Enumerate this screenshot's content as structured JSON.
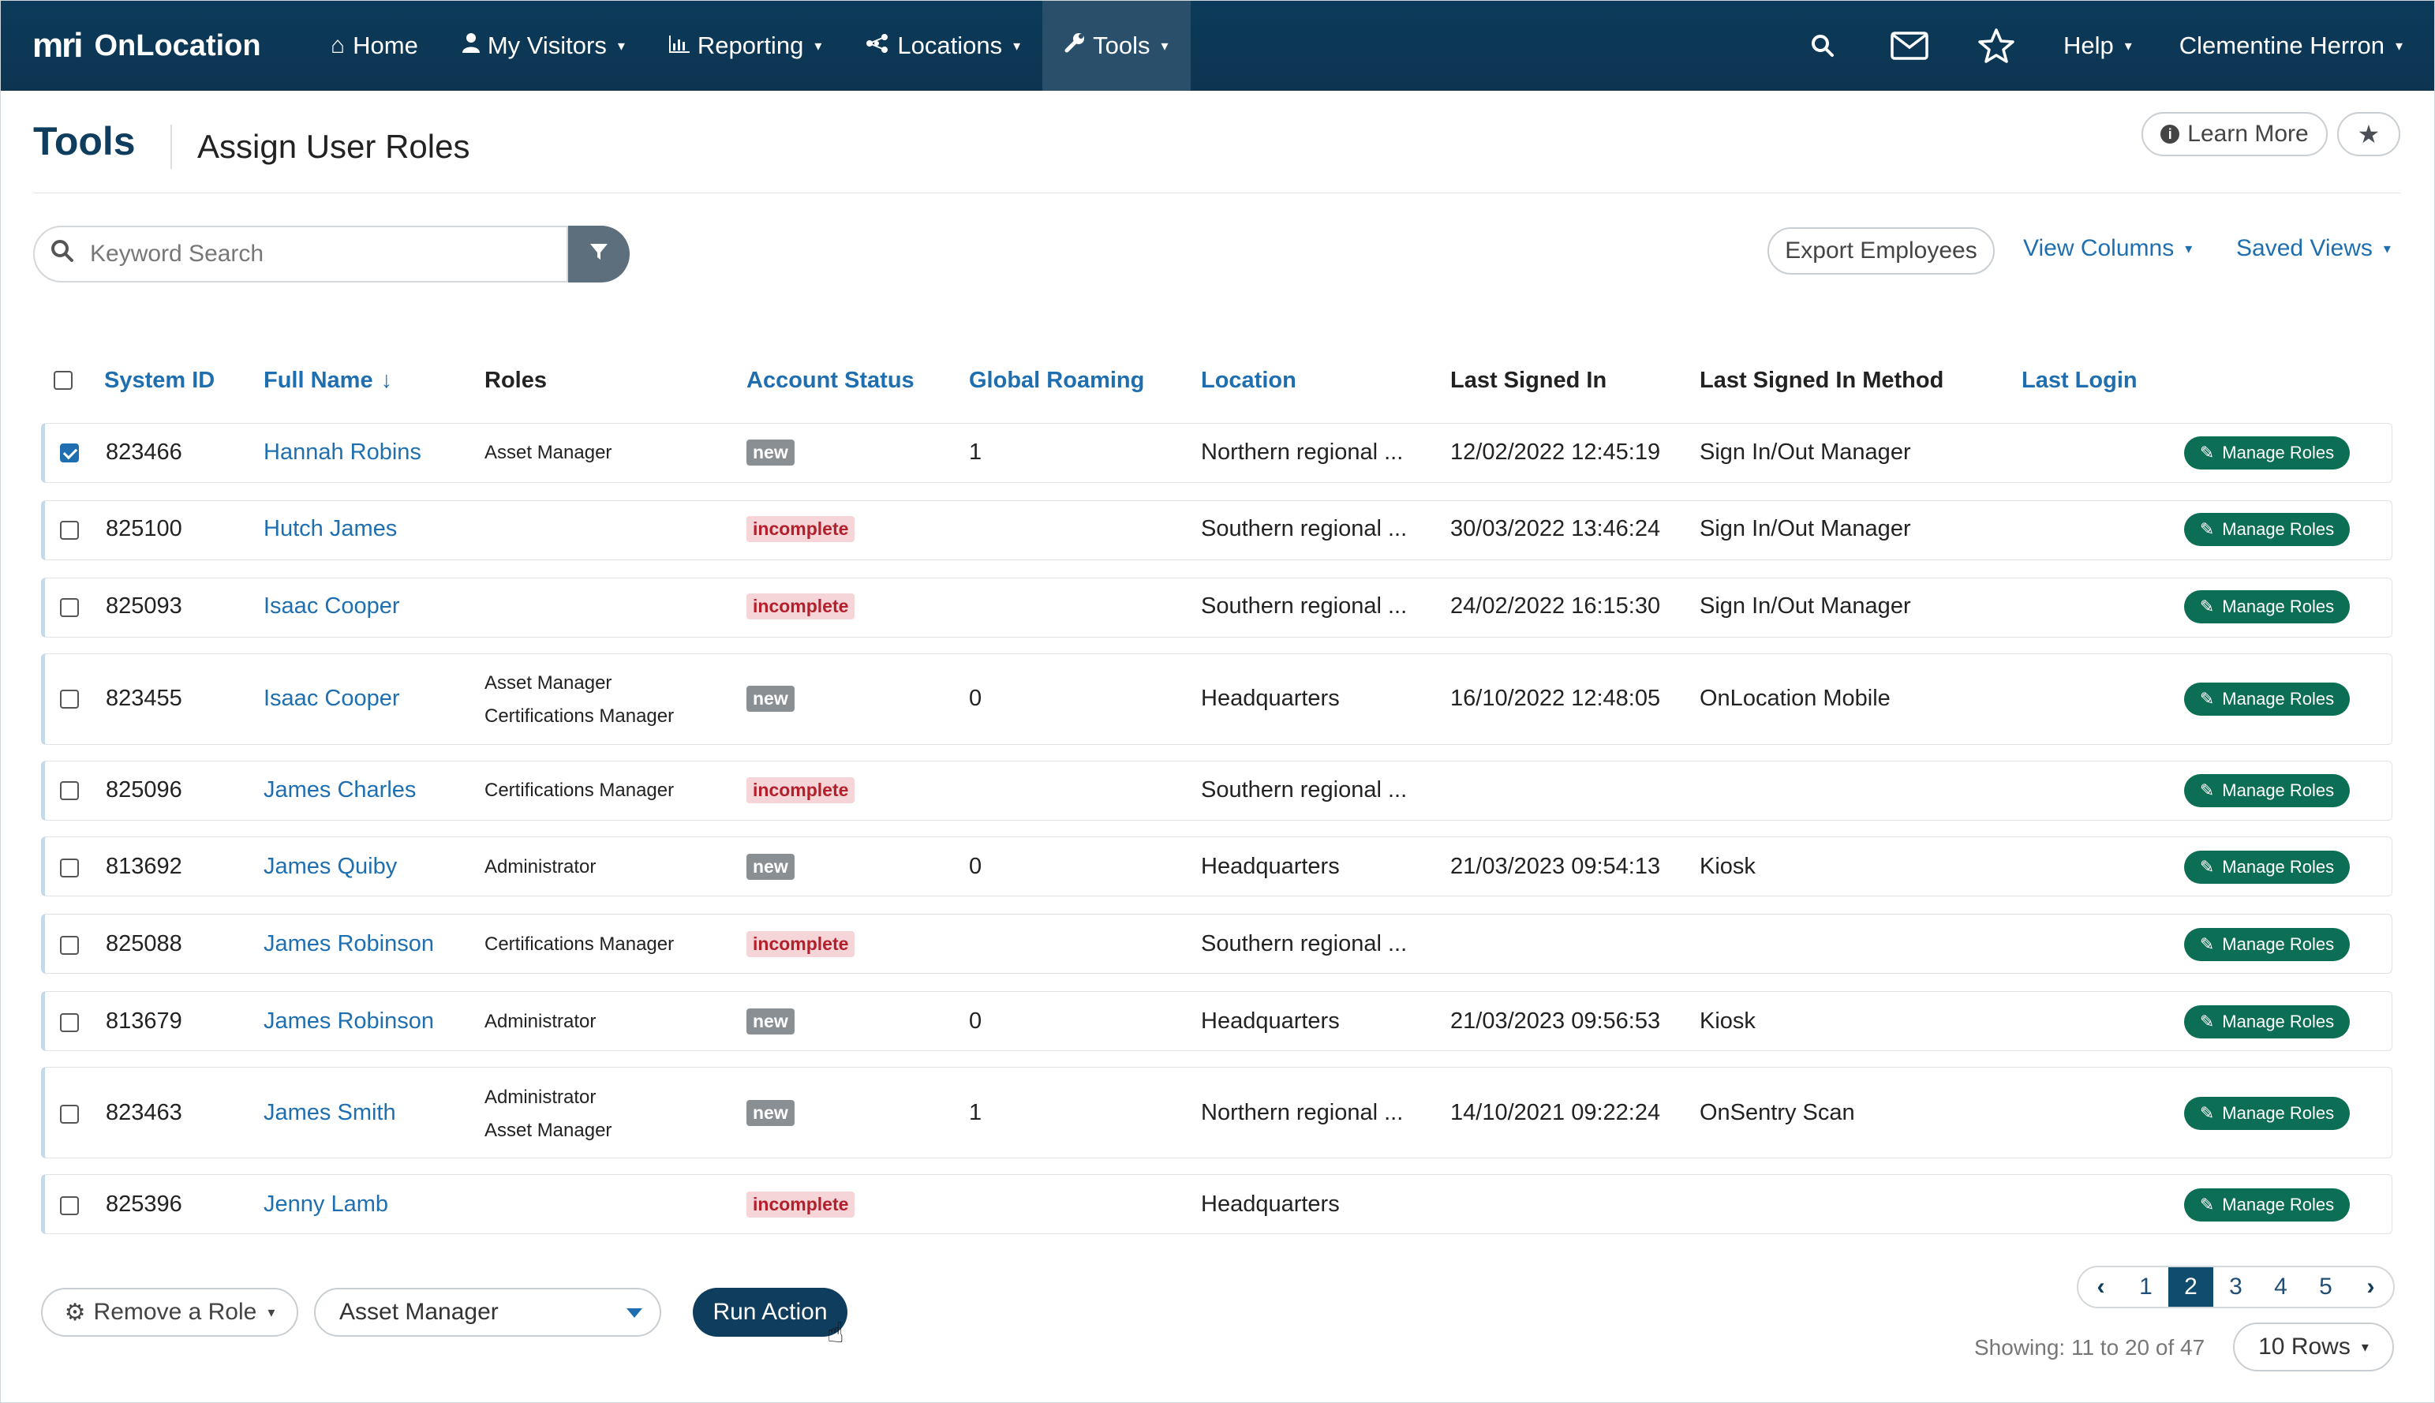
{
  "nav": {
    "brand_mark": "mri",
    "brand_name": "OnLocation",
    "items": [
      {
        "label": "Home",
        "icon": "home-icon"
      },
      {
        "label": "My Visitors",
        "icon": "user-icon"
      },
      {
        "label": "Reporting",
        "icon": "bar-chart-icon"
      },
      {
        "label": "Locations",
        "icon": "network-icon"
      },
      {
        "label": "Tools",
        "icon": "wrench-icon"
      }
    ],
    "help_label": "Help",
    "user_name": "Clementine Herron"
  },
  "header": {
    "title": "Tools",
    "subtitle": "Assign User Roles",
    "learn_more": "Learn More"
  },
  "toolbar": {
    "search_placeholder": "Keyword Search",
    "export_label": "Export Employees",
    "view_columns_label": "View Columns",
    "saved_views_label": "Saved Views"
  },
  "table": {
    "columns": {
      "system_id": "System ID",
      "full_name": "Full Name",
      "roles": "Roles",
      "account_status": "Account Status",
      "global_roaming": "Global Roaming",
      "location": "Location",
      "last_signed_in": "Last Signed In",
      "last_signed_in_method": "Last Signed In Method",
      "last_login": "Last Login"
    },
    "sort_arrow": "↓",
    "manage_label": "Manage Roles",
    "rows": [
      {
        "checked": true,
        "id": "823466",
        "name": "Hannah Robins",
        "roles": [
          "Asset Manager"
        ],
        "status": "new",
        "roaming": "1",
        "location": "Northern regional ...",
        "signed_in": "12/02/2022 12:45:19",
        "method": "Sign In/Out Manager"
      },
      {
        "checked": false,
        "id": "825100",
        "name": "Hutch James",
        "roles": [],
        "status": "incomplete",
        "roaming": "",
        "location": "Southern regional ...",
        "signed_in": "30/03/2022 13:46:24",
        "method": "Sign In/Out Manager"
      },
      {
        "checked": false,
        "id": "825093",
        "name": "Isaac Cooper",
        "roles": [],
        "status": "incomplete",
        "roaming": "",
        "location": "Southern regional ...",
        "signed_in": "24/02/2022 16:15:30",
        "method": "Sign In/Out Manager"
      },
      {
        "checked": false,
        "id": "823455",
        "name": "Isaac Cooper",
        "roles": [
          "Asset Manager",
          "Certifications Manager"
        ],
        "status": "new",
        "roaming": "0",
        "location": "Headquarters",
        "signed_in": "16/10/2022 12:48:05",
        "method": "OnLocation Mobile"
      },
      {
        "checked": false,
        "id": "825096",
        "name": "James Charles",
        "roles": [
          "Certifications Manager"
        ],
        "status": "incomplete",
        "roaming": "",
        "location": "Southern regional ...",
        "signed_in": "",
        "method": ""
      },
      {
        "checked": false,
        "id": "813692",
        "name": "James Quiby",
        "roles": [
          "Administrator"
        ],
        "status": "new",
        "roaming": "0",
        "location": "Headquarters",
        "signed_in": "21/03/2023 09:54:13",
        "method": "Kiosk"
      },
      {
        "checked": false,
        "id": "825088",
        "name": "James Robinson",
        "roles": [
          "Certifications Manager"
        ],
        "status": "incomplete",
        "roaming": "",
        "location": "Southern regional ...",
        "signed_in": "",
        "method": ""
      },
      {
        "checked": false,
        "id": "813679",
        "name": "James Robinson",
        "roles": [
          "Administrator"
        ],
        "status": "new",
        "roaming": "0",
        "location": "Headquarters",
        "signed_in": "21/03/2023 09:56:53",
        "method": "Kiosk"
      },
      {
        "checked": false,
        "id": "823463",
        "name": "James Smith",
        "roles": [
          "Administrator",
          "Asset Manager"
        ],
        "status": "new",
        "roaming": "1",
        "location": "Northern regional ...",
        "signed_in": "14/10/2021 09:22:24",
        "method": "OnSentry Scan"
      },
      {
        "checked": false,
        "id": "825396",
        "name": "Jenny Lamb",
        "roles": [],
        "status": "incomplete",
        "roaming": "",
        "location": "Headquarters",
        "signed_in": "",
        "method": ""
      }
    ]
  },
  "footer": {
    "remove_role_label": "Remove a Role",
    "role_select_value": "Asset Manager",
    "run_action_label": "Run Action",
    "pages": [
      "1",
      "2",
      "3",
      "4",
      "5"
    ],
    "current_page": "2",
    "showing_text": "Showing: 11 to 20 of 47",
    "rows_label": "10 Rows"
  }
}
